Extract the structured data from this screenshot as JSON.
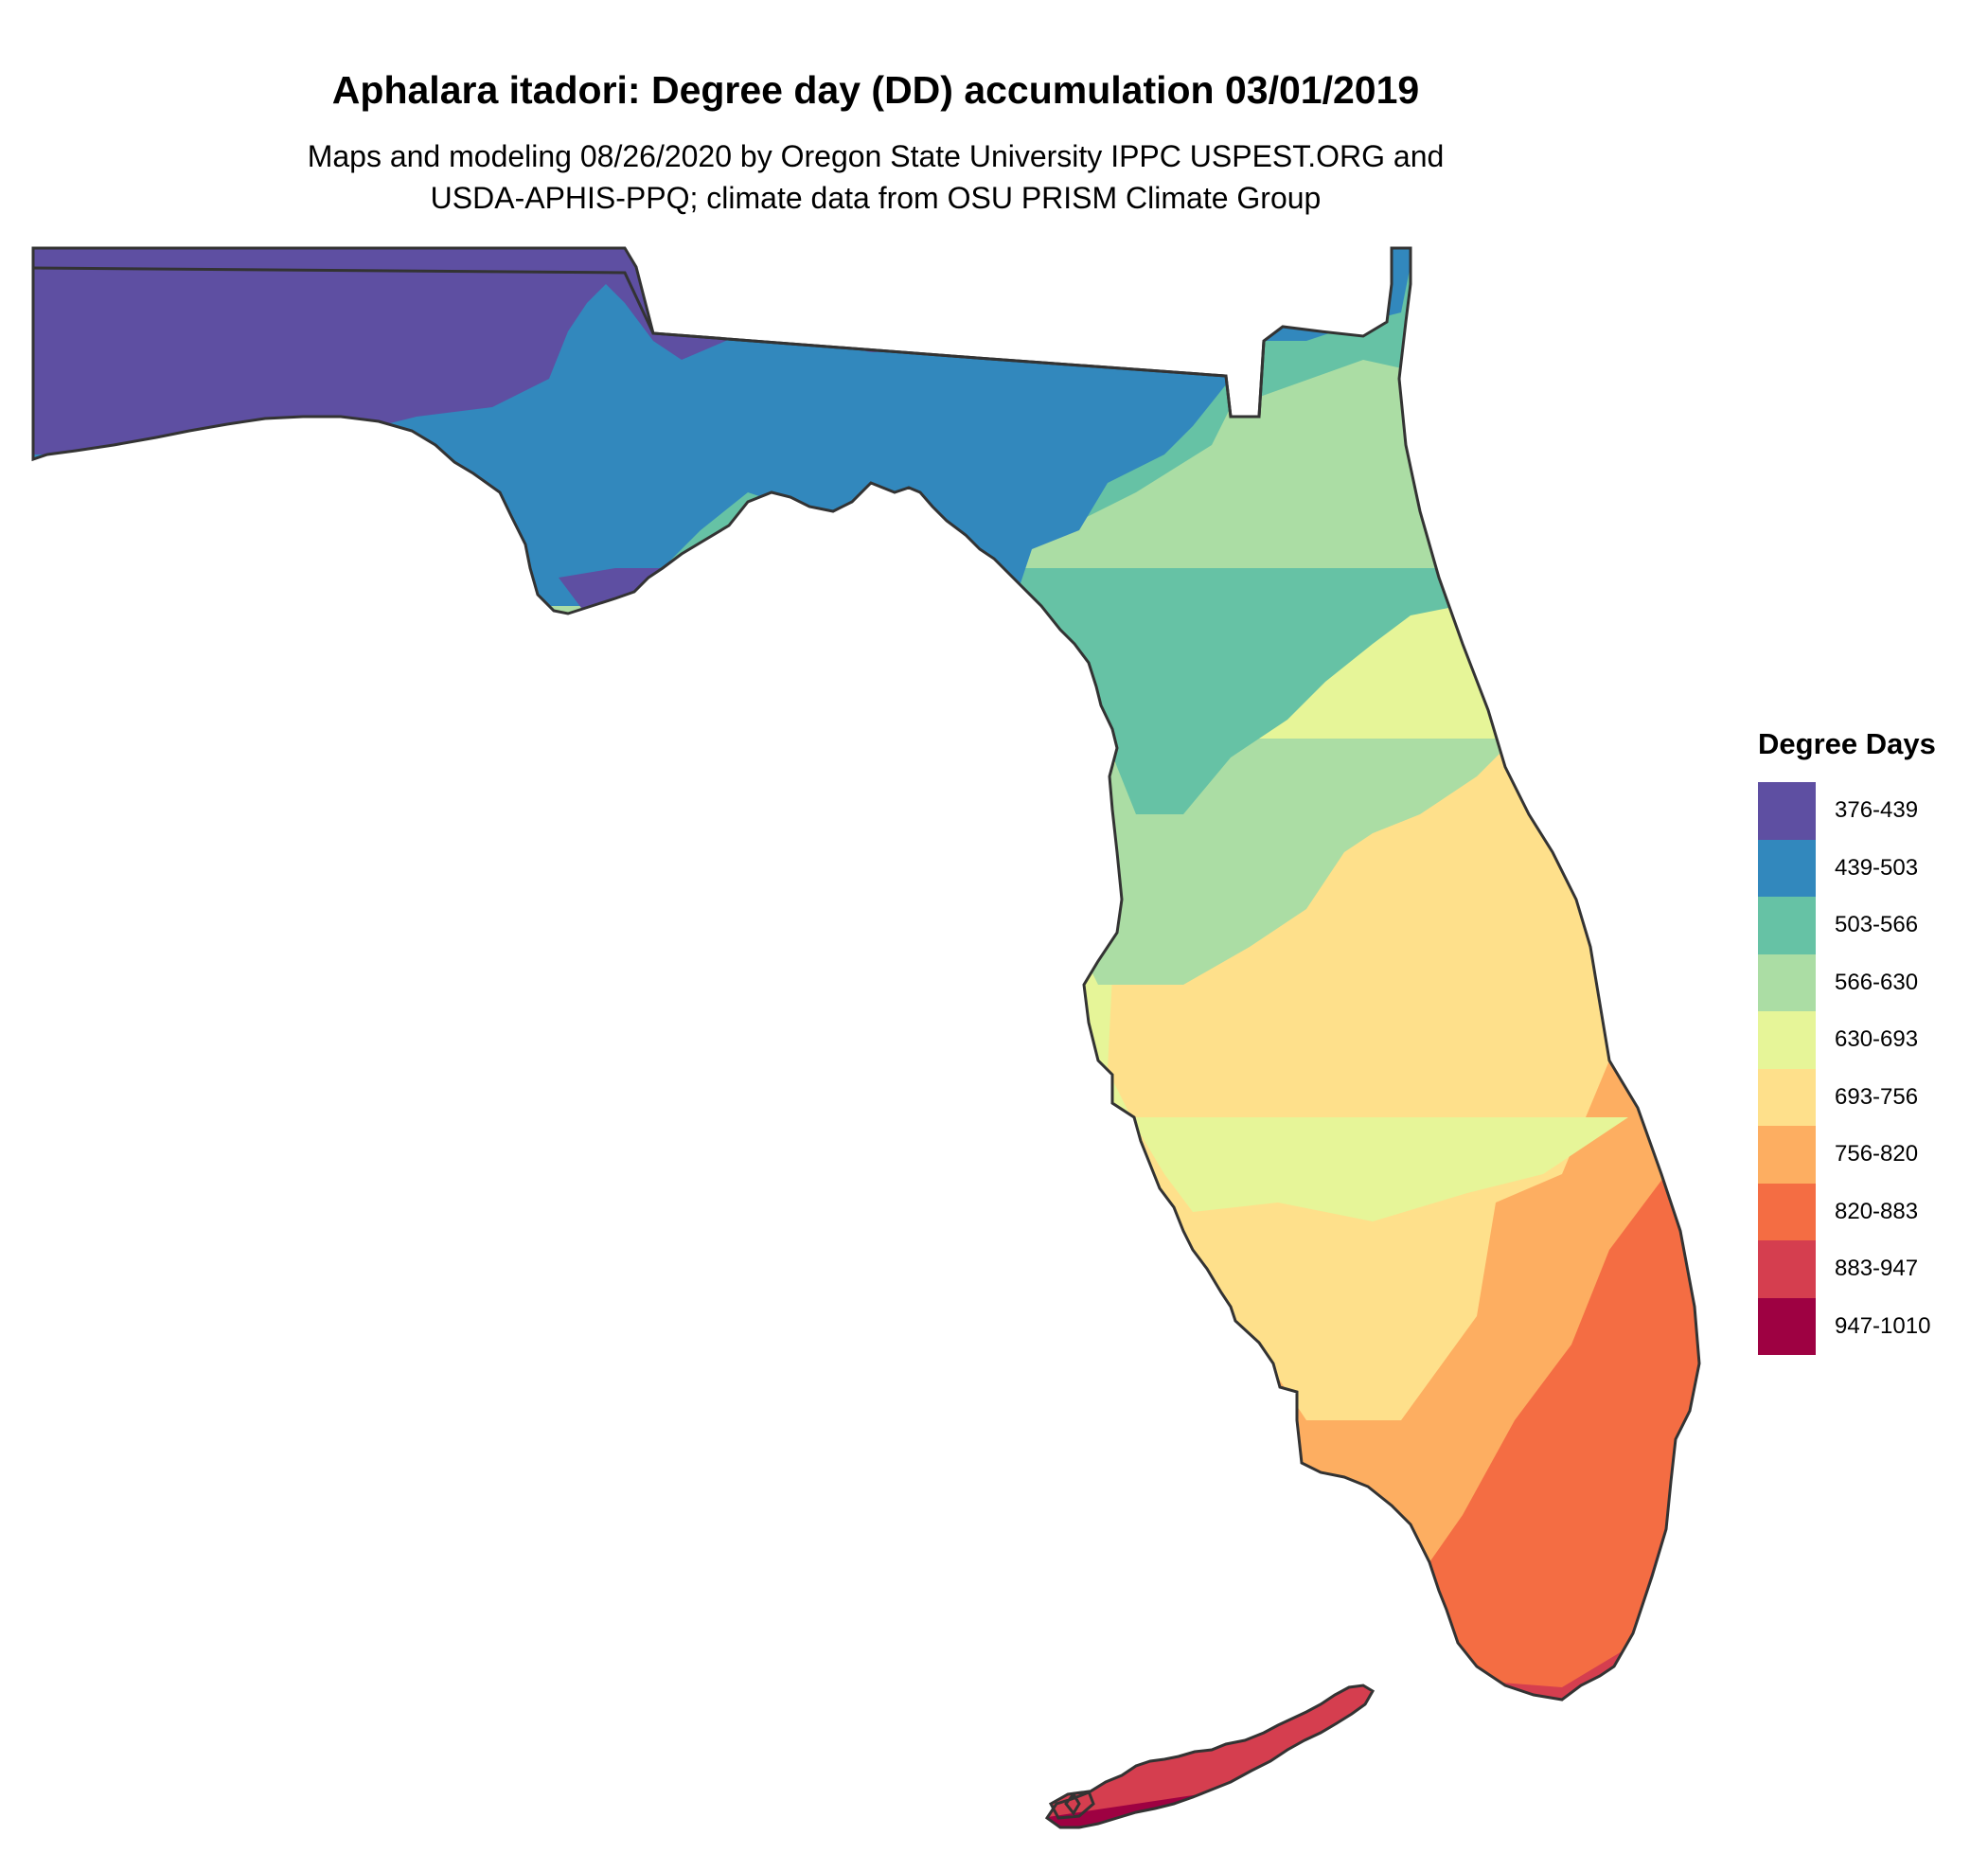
{
  "title": "Aphalara itadori: Degree day (DD) accumulation 03/01/2019",
  "subtitle_line1": "Maps and modeling 08/26/2020 by Oregon State University IPPC USPEST.ORG and",
  "subtitle_line2": "USDA-APHIS-PPQ; climate data from OSU PRISM Climate Group",
  "legend": {
    "title": "Degree Days",
    "classes": [
      {
        "label": "376-439",
        "color": "#5E4FA2"
      },
      {
        "label": "439-503",
        "color": "#3288BD"
      },
      {
        "label": "503-566",
        "color": "#66C2A5"
      },
      {
        "label": "566-630",
        "color": "#ABDDA4"
      },
      {
        "label": "630-693",
        "color": "#E6F598"
      },
      {
        "label": "693-756",
        "color": "#FEE08B"
      },
      {
        "label": "756-820",
        "color": "#FDAE61"
      },
      {
        "label": "820-883",
        "color": "#F46D43"
      },
      {
        "label": "883-947",
        "color": "#D53E4F"
      },
      {
        "label": "947-1010",
        "color": "#9E0142"
      }
    ]
  },
  "map": {
    "region": "Florida",
    "boundary_color": "#333333"
  }
}
